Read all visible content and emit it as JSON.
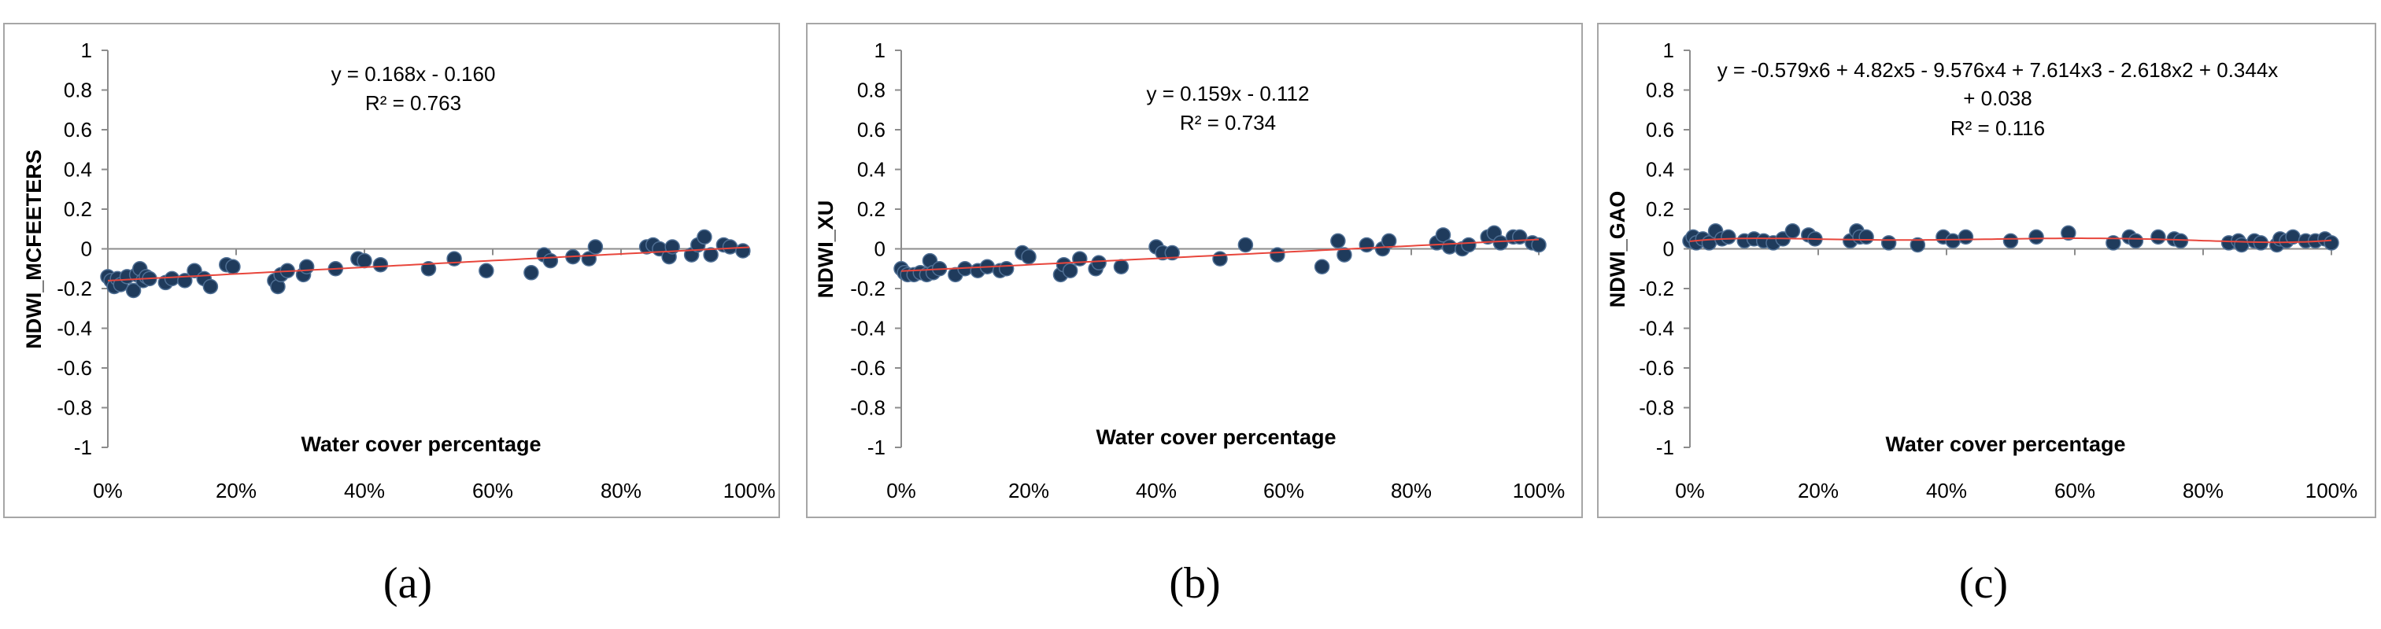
{
  "figure": {
    "captions": [
      "(a)",
      "(b)",
      "(c)"
    ]
  },
  "colors": {
    "point": "#1f3b5c",
    "point_stroke": "#4f6f94",
    "trendline": "#e8463c",
    "axis": "#8c8c8c",
    "frame": "#a6a6a6"
  },
  "chart_data": [
    {
      "type": "scatter",
      "ylabel": "NDWI_MCFEETERS",
      "xlabel": "Water cover percentage",
      "equation_lines": [
        "y = 0.168x - 0.160",
        "R² = 0.763"
      ],
      "x_ticks": [
        "0%",
        "20%",
        "40%",
        "60%",
        "80%",
        "100%"
      ],
      "y_ticks": [
        "1",
        "0.8",
        "0.6",
        "0.4",
        "0.2",
        "0",
        "-0.2",
        "-0.4",
        "-0.6",
        "-0.8",
        "-1"
      ],
      "xlim": [
        0,
        1
      ],
      "ylim": [
        -1,
        1
      ],
      "trend": {
        "kind": "linear",
        "coef": [
          0.168,
          -0.16
        ]
      },
      "x": [
        0.0,
        0.005,
        0.01,
        0.015,
        0.02,
        0.03,
        0.04,
        0.045,
        0.05,
        0.055,
        0.06,
        0.065,
        0.09,
        0.1,
        0.12,
        0.135,
        0.15,
        0.16,
        0.185,
        0.195,
        0.26,
        0.265,
        0.27,
        0.28,
        0.305,
        0.31,
        0.355,
        0.39,
        0.4,
        0.425,
        0.5,
        0.54,
        0.59,
        0.66,
        0.68,
        0.69,
        0.725,
        0.75,
        0.76,
        0.84,
        0.85,
        0.86,
        0.875,
        0.88,
        0.91,
        0.92,
        0.93,
        0.94,
        0.96,
        0.97,
        0.99
      ],
      "y": [
        -0.14,
        -0.16,
        -0.19,
        -0.15,
        -0.18,
        -0.14,
        -0.21,
        -0.13,
        -0.1,
        -0.16,
        -0.14,
        -0.15,
        -0.17,
        -0.15,
        -0.16,
        -0.11,
        -0.15,
        -0.19,
        -0.08,
        -0.09,
        -0.16,
        -0.19,
        -0.13,
        -0.11,
        -0.13,
        -0.09,
        -0.1,
        -0.05,
        -0.06,
        -0.08,
        -0.1,
        -0.05,
        -0.11,
        -0.12,
        -0.03,
        -0.06,
        -0.04,
        -0.05,
        0.01,
        0.01,
        0.02,
        0.0,
        -0.04,
        0.01,
        -0.03,
        0.02,
        0.06,
        -0.03,
        0.02,
        0.01,
        -0.01
      ]
    },
    {
      "type": "scatter",
      "ylabel": "NDWI_XU",
      "xlabel": "Water cover percentage",
      "equation_lines": [
        "y = 0.159x - 0.112",
        "R² = 0.734"
      ],
      "x_ticks": [
        "0%",
        "20%",
        "40%",
        "60%",
        "80%",
        "100%"
      ],
      "y_ticks": [
        "1",
        "0.8",
        "0.6",
        "0.4",
        "0.2",
        "0",
        "-0.2",
        "-0.4",
        "-0.6",
        "-0.8",
        "-1"
      ],
      "xlim": [
        0,
        1
      ],
      "ylim": [
        -1,
        1
      ],
      "trend": {
        "kind": "linear",
        "coef": [
          0.159,
          -0.112
        ]
      },
      "x": [
        0.0,
        0.005,
        0.01,
        0.02,
        0.03,
        0.04,
        0.045,
        0.05,
        0.06,
        0.085,
        0.1,
        0.12,
        0.135,
        0.155,
        0.165,
        0.19,
        0.2,
        0.25,
        0.255,
        0.265,
        0.28,
        0.305,
        0.31,
        0.345,
        0.4,
        0.41,
        0.425,
        0.5,
        0.54,
        0.59,
        0.66,
        0.685,
        0.695,
        0.73,
        0.755,
        0.765,
        0.84,
        0.85,
        0.86,
        0.88,
        0.89,
        0.92,
        0.93,
        0.94,
        0.96,
        0.97,
        0.99,
        1.0
      ],
      "y": [
        -0.1,
        -0.12,
        -0.13,
        -0.13,
        -0.12,
        -0.13,
        -0.06,
        -0.12,
        -0.1,
        -0.13,
        -0.1,
        -0.11,
        -0.09,
        -0.11,
        -0.1,
        -0.02,
        -0.04,
        -0.13,
        -0.08,
        -0.11,
        -0.05,
        -0.1,
        -0.07,
        -0.09,
        0.01,
        -0.02,
        -0.02,
        -0.05,
        0.02,
        -0.03,
        -0.09,
        0.04,
        -0.03,
        0.02,
        0.0,
        0.04,
        0.03,
        0.07,
        0.01,
        0.0,
        0.02,
        0.06,
        0.08,
        0.03,
        0.06,
        0.06,
        0.03,
        0.02
      ]
    },
    {
      "type": "scatter",
      "ylabel": "NDWI_GAO",
      "xlabel": "Water cover percentage",
      "equation_lines": [
        "y = -0.579x6 + 4.82x5 - 9.576x4 + 7.614x3 - 2.618x2 + 0.344x",
        "+ 0.038",
        "R² = 0.116"
      ],
      "x_ticks": [
        "0%",
        "20%",
        "40%",
        "60%",
        "80%",
        "100%"
      ],
      "y_ticks": [
        "1",
        "0.8",
        "0.6",
        "0.4",
        "0.2",
        "0",
        "-0.2",
        "-0.4",
        "-0.6",
        "-0.8",
        "-1"
      ],
      "xlim": [
        0,
        1
      ],
      "ylim": [
        -1,
        1
      ],
      "trend": {
        "kind": "poly",
        "coef": [
          0.038,
          0.344,
          -2.618,
          7.614,
          -9.576,
          4.82,
          -0.579
        ]
      },
      "x": [
        0.0,
        0.005,
        0.01,
        0.02,
        0.03,
        0.04,
        0.05,
        0.06,
        0.085,
        0.1,
        0.115,
        0.13,
        0.145,
        0.16,
        0.185,
        0.195,
        0.25,
        0.26,
        0.265,
        0.275,
        0.31,
        0.355,
        0.395,
        0.41,
        0.43,
        0.5,
        0.54,
        0.59,
        0.66,
        0.685,
        0.695,
        0.73,
        0.755,
        0.765,
        0.84,
        0.855,
        0.86,
        0.88,
        0.89,
        0.915,
        0.92,
        0.93,
        0.94,
        0.96,
        0.975,
        0.99,
        1.0
      ],
      "y": [
        0.04,
        0.06,
        0.03,
        0.05,
        0.03,
        0.09,
        0.05,
        0.06,
        0.04,
        0.05,
        0.04,
        0.03,
        0.05,
        0.09,
        0.07,
        0.05,
        0.04,
        0.09,
        0.06,
        0.06,
        0.03,
        0.02,
        0.06,
        0.04,
        0.06,
        0.04,
        0.06,
        0.08,
        0.03,
        0.06,
        0.04,
        0.06,
        0.05,
        0.04,
        0.03,
        0.04,
        0.02,
        0.04,
        0.03,
        0.02,
        0.05,
        0.04,
        0.06,
        0.04,
        0.04,
        0.05,
        0.03
      ]
    }
  ]
}
